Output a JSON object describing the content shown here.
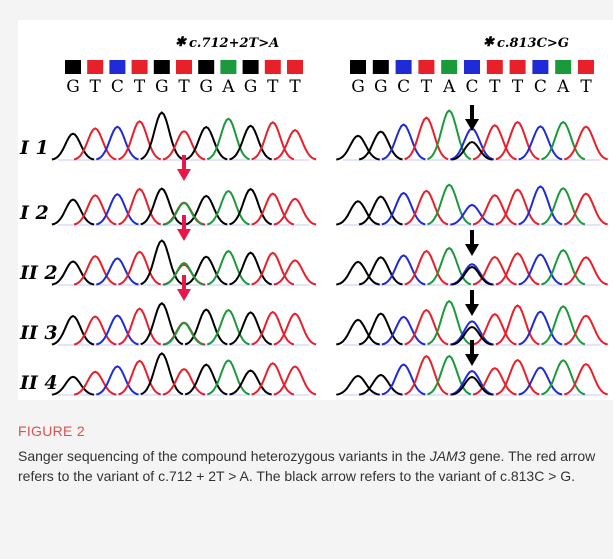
{
  "figure": {
    "left_mutation": "c.712+2T>A",
    "right_mutation": "c.813C>G",
    "asterisk": "✱",
    "left_sequence": "GTCTGTGAGTT",
    "right_sequence": "GGCTACTTCAT",
    "rows": [
      "I 1",
      "I 2",
      "II 2",
      "II 3",
      "II 4"
    ],
    "colors": {
      "A": "#1a9a3a",
      "C": "#1f2bd6",
      "G": "#000000",
      "T": "#e8202a",
      "red_arrow": "#e8174a",
      "black_arrow": "#000000"
    }
  },
  "caption": {
    "label": "FIGURE 2",
    "text_before": "Sanger sequencing of the compound heterozygous variants in the ",
    "gene": "JAM3",
    "text_after": " gene. The red arrow refers to the variant of c.712 + 2T > A. The black arrow refers to the variant of c.813C > G."
  }
}
